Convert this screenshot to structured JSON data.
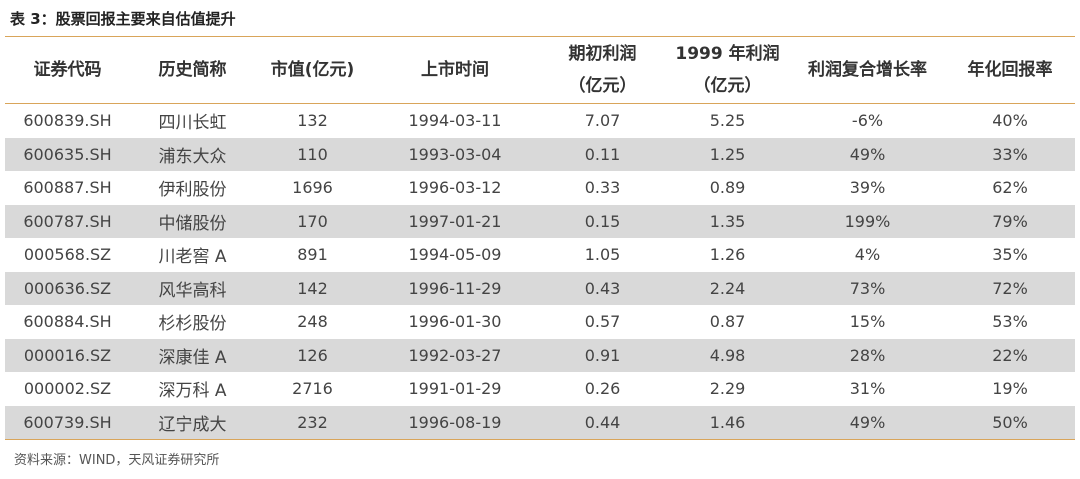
{
  "table_title": "表 3：股票回报主要来自估值提升",
  "headers": [
    {
      "line1": "证券代码",
      "line2": ""
    },
    {
      "line1": "历史简称",
      "line2": ""
    },
    {
      "line1": "市值(亿元)",
      "line2": ""
    },
    {
      "line1": "上市时间",
      "line2": ""
    },
    {
      "line1": "期初利润",
      "line2": "（亿元）"
    },
    {
      "line1": "1999 年利润",
      "line2": "（亿元）"
    },
    {
      "line1": "利润复合增长率",
      "line2": ""
    },
    {
      "line1": "年化回报率",
      "line2": ""
    }
  ],
  "rows": [
    [
      "600839.SH",
      "四川长虹",
      "132",
      "1994-03-11",
      "7.07",
      "5.25",
      "-6%",
      "40%"
    ],
    [
      "600635.SH",
      "浦东大众",
      "110",
      "1993-03-04",
      "0.11",
      "1.25",
      "49%",
      "33%"
    ],
    [
      "600887.SH",
      "伊利股份",
      "1696",
      "1996-03-12",
      "0.33",
      "0.89",
      "39%",
      "62%"
    ],
    [
      "600787.SH",
      "中储股份",
      "170",
      "1997-01-21",
      "0.15",
      "1.35",
      "199%",
      "79%"
    ],
    [
      "000568.SZ",
      "川老窖 A",
      "891",
      "1994-05-09",
      "1.05",
      "1.26",
      "4%",
      "35%"
    ],
    [
      "000636.SZ",
      "风华高科",
      "142",
      "1996-11-29",
      "0.43",
      "2.24",
      "73%",
      "72%"
    ],
    [
      "600884.SH",
      "杉杉股份",
      "248",
      "1996-01-30",
      "0.57",
      "0.87",
      "15%",
      "53%"
    ],
    [
      "000016.SZ",
      "深康佳 A",
      "126",
      "1992-03-27",
      "0.91",
      "4.98",
      "28%",
      "22%"
    ],
    [
      "000002.SZ",
      "深万科 A",
      "2716",
      "1991-01-29",
      "0.26",
      "2.29",
      "31%",
      "19%"
    ],
    [
      "600739.SH",
      "辽宁成大",
      "232",
      "1996-08-19",
      "0.44",
      "1.46",
      "49%",
      "50%"
    ]
  ],
  "source": "资料来源：WIND，天风证券研究所"
}
